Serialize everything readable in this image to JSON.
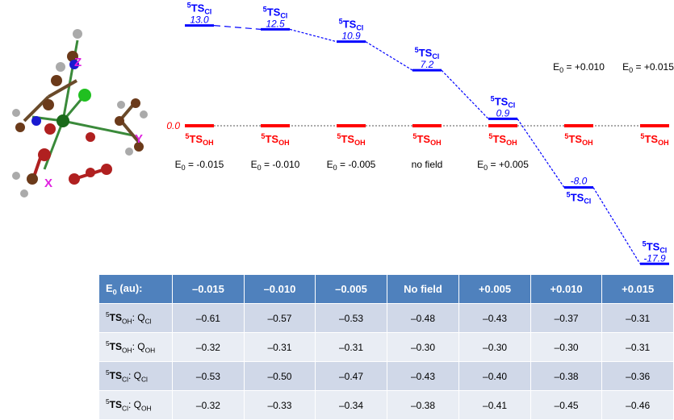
{
  "species_ts_cl": {
    "sup": "5",
    "main": "TS",
    "sub": "Cl"
  },
  "species_ts_oh": {
    "sup": "5",
    "main": "TS",
    "sub": "OH"
  },
  "field_labels": [
    {
      "prefix": "E",
      "sub": "0",
      "value": " = -0.015"
    },
    {
      "prefix": "E",
      "sub": "0",
      "value": " = -0.010"
    },
    {
      "prefix": "E",
      "sub": "0",
      "value": " = -0.005"
    },
    {
      "prefix": "",
      "sub": "",
      "value": "no field"
    },
    {
      "prefix": "E",
      "sub": "0",
      "value": " = +0.005"
    },
    {
      "prefix": "E",
      "sub": "0",
      "value": " = +0.010"
    },
    {
      "prefix": "E",
      "sub": "0",
      "value": " = +0.015"
    }
  ],
  "energy_levels": {
    "ts_oh": [
      0.0,
      0.0,
      0.0,
      0.0,
      0.0,
      0.0,
      0.0
    ],
    "ts_oh_shown_value": "0.0",
    "ts_cl": [
      13.0,
      12.5,
      10.9,
      7.2,
      0.9,
      -8.0,
      -17.9
    ],
    "ts_cl_labels": [
      "13.0",
      "12.5",
      "10.9",
      "7.2",
      "0.9",
      "-8.0",
      "-17.9"
    ]
  },
  "axis_labels": {
    "x": "X",
    "y": "Y",
    "z": "Z"
  },
  "colors": {
    "ts_cl": "#0000ff",
    "ts_oh": "#ff0000",
    "table_header": "#4f81bd",
    "row_odd": "#d0d8e8",
    "row_even": "#e9edf4",
    "axis_label": "#e020e0"
  },
  "table": {
    "header_label": {
      "main": "E",
      "sub": "0",
      "rest": " (au):"
    },
    "columns": [
      "–0.015",
      "–0.010",
      "–0.005",
      "No field",
      "+0.005",
      "+0.010",
      "+0.015"
    ],
    "rows": [
      {
        "sup": "5",
        "main": "TS",
        "sub": "OH",
        "q": "Q",
        "qsub": "Cl",
        "values": [
          "–0.61",
          "–0.57",
          "–0.53",
          "–0.48",
          "–0.43",
          "–0.37",
          "–0.31"
        ]
      },
      {
        "sup": "5",
        "main": "TS",
        "sub": "OH",
        "q": "Q",
        "qsub": "OH",
        "values": [
          "–0.32",
          "–0.31",
          "–0.31",
          "–0.30",
          "–0.30",
          "–0.30",
          "–0.31"
        ]
      },
      {
        "sup": "5",
        "main": "TS",
        "sub": "Cl",
        "q": "Q",
        "qsub": "Cl",
        "values": [
          "–0.53",
          "–0.50",
          "–0.47",
          "–0.43",
          "–0.40",
          "–0.38",
          "–0.36"
        ]
      },
      {
        "sup": "5",
        "main": "TS",
        "sub": "Cl",
        "q": "Q",
        "qsub": "OH",
        "values": [
          "–0.32",
          "–0.33",
          "–0.34",
          "–0.38",
          "–0.41",
          "–0.45",
          "–0.46"
        ]
      }
    ]
  }
}
